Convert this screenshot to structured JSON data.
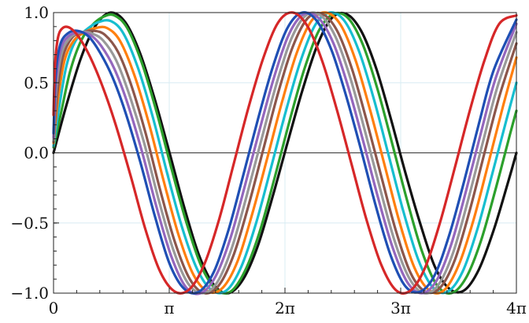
{
  "chart_data": {
    "type": "line",
    "title": "",
    "xlabel": "",
    "ylabel": "",
    "xlim": [
      0,
      12.566
    ],
    "ylim": [
      -1.0,
      1.0
    ],
    "grid": true,
    "legend": "none",
    "x_ticks": [
      {
        "value": 0,
        "label": "0"
      },
      {
        "value": 3.1416,
        "label": "π"
      },
      {
        "value": 6.2832,
        "label": "2π"
      },
      {
        "value": 9.4248,
        "label": "3π"
      },
      {
        "value": 12.566,
        "label": "4π"
      }
    ],
    "y_ticks": [
      {
        "value": 1.0,
        "label": "1.0"
      },
      {
        "value": 0.5,
        "label": "0.5"
      },
      {
        "value": 0.0,
        "label": "0.0"
      },
      {
        "value": -0.5,
        "label": "−0.5"
      },
      {
        "value": -1.0,
        "label": "−1.0"
      }
    ],
    "series": [
      {
        "color": "#111111",
        "x": [
          0,
          0.35,
          0.75,
          1.15,
          1.55,
          1.95,
          2.35,
          2.75,
          3.15,
          3.55,
          3.95,
          4.35,
          4.75,
          5.15,
          5.55,
          5.95,
          6.35,
          6.75,
          7.15,
          7.55,
          7.95,
          8.35,
          8.75,
          9.15,
          9.55,
          9.95,
          10.35,
          10.75,
          11.15,
          11.55,
          11.95,
          12.35,
          12.566
        ],
        "y": [
          0.0,
          0.34,
          0.68,
          0.91,
          1.0,
          0.93,
          0.71,
          0.38,
          0.0,
          -0.39,
          -0.73,
          -0.94,
          -1.0,
          -0.9,
          -0.66,
          -0.31,
          0.07,
          0.44,
          0.76,
          0.96,
          0.99,
          0.87,
          0.61,
          0.25,
          -0.14,
          -0.5,
          -0.81,
          -0.97,
          -0.98,
          -0.83,
          -0.55,
          -0.2,
          0.0
        ]
      },
      {
        "color": "#2ca02c",
        "x": [
          0,
          0.2,
          0.45,
          0.75,
          1.05,
          1.35,
          1.65,
          2.0,
          2.4,
          2.8,
          3.2,
          3.6,
          4.0,
          4.4,
          4.8,
          5.2,
          5.6,
          6.0,
          6.4,
          6.8,
          7.2,
          7.6,
          8.0,
          8.4,
          8.8,
          9.2,
          9.6,
          10.0,
          10.4,
          10.8,
          11.2,
          11.6,
          12.0,
          12.4,
          12.566
        ],
        "y": [
          0.04,
          0.28,
          0.58,
          0.8,
          0.91,
          0.97,
          0.98,
          0.89,
          0.64,
          0.29,
          -0.11,
          -0.49,
          -0.8,
          -0.97,
          -0.99,
          -0.84,
          -0.56,
          -0.18,
          0.22,
          0.59,
          0.87,
          0.99,
          0.96,
          0.77,
          0.45,
          0.06,
          -0.34,
          -0.7,
          -0.94,
          -1.0,
          -0.89,
          -0.63,
          -0.26,
          0.14,
          0.3
        ]
      },
      {
        "color": "#17becf",
        "x": [
          0,
          0.15,
          0.35,
          0.6,
          0.9,
          1.2,
          1.55,
          1.9,
          2.3,
          2.7,
          3.1,
          3.5,
          3.9,
          4.3,
          4.7,
          5.1,
          5.5,
          5.9,
          6.3,
          6.7,
          7.1,
          7.5,
          7.9,
          8.3,
          8.7,
          9.1,
          9.5,
          9.9,
          10.3,
          10.7,
          11.1,
          11.5,
          11.9,
          12.3,
          12.566
        ],
        "y": [
          0.05,
          0.32,
          0.62,
          0.8,
          0.88,
          0.93,
          0.94,
          0.85,
          0.6,
          0.25,
          -0.16,
          -0.54,
          -0.83,
          -0.98,
          -0.98,
          -0.81,
          -0.5,
          -0.11,
          0.29,
          0.65,
          0.91,
          1.0,
          0.94,
          0.72,
          0.38,
          -0.02,
          -0.42,
          -0.76,
          -0.96,
          -0.99,
          -0.85,
          -0.55,
          -0.16,
          0.24,
          0.5
        ]
      },
      {
        "color": "#ff7f0e",
        "x": [
          0,
          0.12,
          0.3,
          0.55,
          0.85,
          1.15,
          1.45,
          1.8,
          2.2,
          2.6,
          3.0,
          3.4,
          3.8,
          4.2,
          4.6,
          5.0,
          5.4,
          5.8,
          6.2,
          6.6,
          7.0,
          7.4,
          7.8,
          8.2,
          8.6,
          9.0,
          9.4,
          9.8,
          10.2,
          10.6,
          11.0,
          11.4,
          11.8,
          12.2,
          12.566
        ],
        "y": [
          0.07,
          0.38,
          0.66,
          0.8,
          0.86,
          0.89,
          0.89,
          0.8,
          0.55,
          0.2,
          -0.21,
          -0.59,
          -0.87,
          -0.99,
          -0.96,
          -0.77,
          -0.43,
          -0.04,
          0.36,
          0.71,
          0.94,
          1.0,
          0.91,
          0.66,
          0.3,
          -0.1,
          -0.5,
          -0.82,
          -0.98,
          -0.98,
          -0.8,
          -0.48,
          -0.08,
          0.33,
          0.68
        ]
      },
      {
        "color": "#8c564b",
        "x": [
          0,
          0.1,
          0.25,
          0.5,
          0.8,
          1.1,
          1.4,
          1.75,
          2.1,
          2.5,
          2.9,
          3.3,
          3.7,
          4.1,
          4.5,
          4.9,
          5.3,
          5.7,
          6.1,
          6.5,
          6.9,
          7.3,
          7.7,
          8.1,
          8.5,
          8.9,
          9.3,
          9.7,
          10.1,
          10.5,
          10.9,
          11.3,
          11.7,
          12.1,
          12.566
        ],
        "y": [
          0.08,
          0.42,
          0.68,
          0.82,
          0.86,
          0.87,
          0.84,
          0.72,
          0.49,
          0.14,
          -0.27,
          -0.64,
          -0.9,
          -1.0,
          -0.94,
          -0.72,
          -0.37,
          0.03,
          0.43,
          0.76,
          0.96,
          0.99,
          0.87,
          0.6,
          0.23,
          -0.17,
          -0.56,
          -0.86,
          -0.99,
          -0.96,
          -0.76,
          -0.41,
          0.0,
          0.4,
          0.78
        ]
      },
      {
        "color": "#999999",
        "x": [
          0,
          0.08,
          0.22,
          0.45,
          0.75,
          1.05,
          1.35,
          1.7,
          2.05,
          2.45,
          2.85,
          3.25,
          3.65,
          4.05,
          4.45,
          4.85,
          5.25,
          5.65,
          6.05,
          6.45,
          6.85,
          7.25,
          7.65,
          8.05,
          8.45,
          8.85,
          9.25,
          9.65,
          10.05,
          10.45,
          10.85,
          11.25,
          11.65,
          12.05,
          12.566
        ],
        "y": [
          0.09,
          0.47,
          0.71,
          0.82,
          0.86,
          0.85,
          0.8,
          0.66,
          0.42,
          0.08,
          -0.33,
          -0.69,
          -0.93,
          -1.0,
          -0.92,
          -0.67,
          -0.3,
          0.1,
          0.49,
          0.81,
          0.98,
          0.98,
          0.83,
          0.54,
          0.16,
          -0.24,
          -0.62,
          -0.89,
          -1.0,
          -0.94,
          -0.71,
          -0.34,
          0.07,
          0.47,
          0.86
        ]
      },
      {
        "color": "#9467bd",
        "x": [
          0,
          0.07,
          0.2,
          0.4,
          0.7,
          1.0,
          1.3,
          1.65,
          2.0,
          2.4,
          2.8,
          3.2,
          3.6,
          4.0,
          4.4,
          4.8,
          5.2,
          5.6,
          6.0,
          6.4,
          6.8,
          7.2,
          7.6,
          8.0,
          8.4,
          8.8,
          9.2,
          9.6,
          10.0,
          10.4,
          10.8,
          11.2,
          11.6,
          12.0,
          12.566
        ],
        "y": [
          0.11,
          0.52,
          0.74,
          0.83,
          0.86,
          0.84,
          0.76,
          0.6,
          0.36,
          0.01,
          -0.39,
          -0.74,
          -0.96,
          -1.0,
          -0.88,
          -0.61,
          -0.23,
          0.17,
          0.55,
          0.85,
          0.99,
          0.96,
          0.78,
          0.47,
          0.09,
          -0.31,
          -0.67,
          -0.92,
          -1.0,
          -0.91,
          -0.65,
          -0.27,
          0.14,
          0.53,
          0.92
        ]
      },
      {
        "color": "#1f4fb4",
        "x": [
          0,
          0.06,
          0.18,
          0.38,
          0.65,
          0.95,
          1.25,
          1.6,
          1.95,
          2.35,
          2.75,
          3.15,
          3.55,
          3.95,
          4.35,
          4.75,
          5.15,
          5.55,
          5.95,
          6.35,
          6.75,
          7.15,
          7.55,
          7.95,
          8.35,
          8.75,
          9.15,
          9.55,
          9.95,
          10.35,
          10.75,
          11.15,
          11.55,
          11.95,
          12.566
        ],
        "y": [
          0.14,
          0.56,
          0.77,
          0.85,
          0.87,
          0.83,
          0.72,
          0.54,
          0.29,
          -0.06,
          -0.45,
          -0.79,
          -0.97,
          -0.99,
          -0.85,
          -0.55,
          -0.16,
          0.24,
          0.61,
          0.89,
          1.0,
          0.94,
          0.73,
          0.4,
          0.02,
          -0.38,
          -0.73,
          -0.95,
          -0.99,
          -0.87,
          -0.58,
          -0.2,
          0.21,
          0.59,
          0.95
        ]
      },
      {
        "color": "#d62728",
        "x": [
          0,
          0.04,
          0.12,
          0.25,
          0.45,
          0.7,
          1.0,
          1.35,
          1.7,
          2.1,
          2.5,
          2.9,
          3.3,
          3.7,
          4.1,
          4.5,
          4.9,
          5.3,
          5.7,
          6.1,
          6.5,
          6.9,
          7.3,
          7.7,
          8.1,
          8.5,
          8.9,
          9.3,
          9.7,
          10.1,
          10.5,
          10.9,
          11.3,
          11.7,
          12.1,
          12.566
        ],
        "y": [
          0.27,
          0.62,
          0.82,
          0.89,
          0.89,
          0.82,
          0.68,
          0.46,
          0.19,
          -0.17,
          -0.55,
          -0.85,
          -0.99,
          -0.97,
          -0.79,
          -0.47,
          -0.07,
          0.33,
          0.68,
          0.93,
          1.0,
          0.9,
          0.65,
          0.3,
          -0.09,
          -0.48,
          -0.8,
          -0.98,
          -0.98,
          -0.81,
          -0.49,
          -0.1,
          0.3,
          0.66,
          0.92,
          0.98
        ]
      }
    ]
  }
}
